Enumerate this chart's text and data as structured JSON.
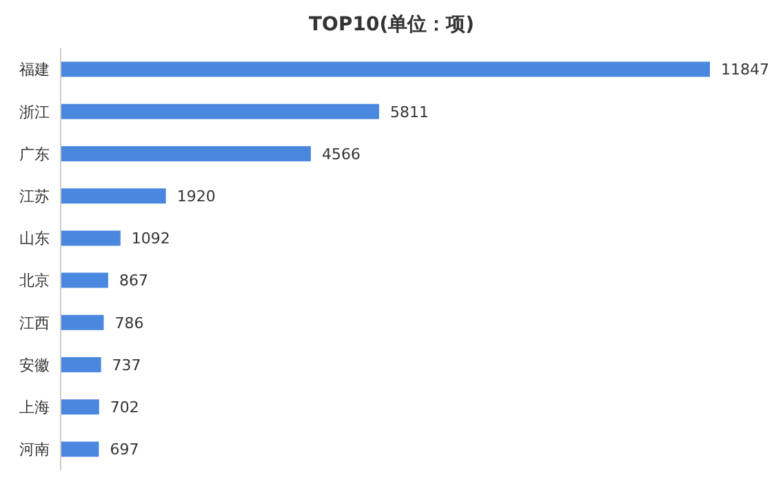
{
  "chart_data": {
    "type": "bar",
    "orientation": "horizontal",
    "title": "TOP10(单位：项)",
    "categories": [
      "福建",
      "浙江",
      "广东",
      "江苏",
      "山东",
      "北京",
      "江西",
      "安徽",
      "上海",
      "河南"
    ],
    "values": [
      11847,
      5811,
      4566,
      1920,
      1092,
      867,
      786,
      737,
      702,
      697
    ],
    "color": "#4a88e0",
    "data_labels": true
  }
}
